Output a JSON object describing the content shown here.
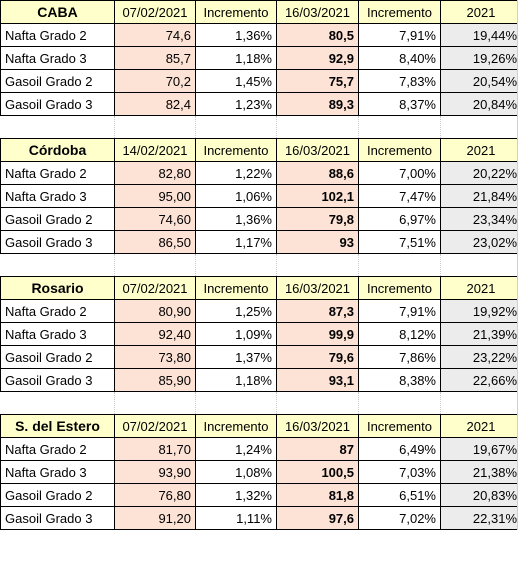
{
  "sections": [
    {
      "city": "CABA",
      "headers": [
        "07/02/2021",
        "Incremento",
        "16/03/2021",
        "Incremento",
        "2021"
      ],
      "rows": [
        {
          "product": "Nafta Grado 2",
          "price1": "74,6",
          "inc1": "1,36%",
          "price2": "80,5",
          "inc2": "7,91%",
          "ytd": "19,44%"
        },
        {
          "product": "Nafta Grado 3",
          "price1": "85,7",
          "inc1": "1,18%",
          "price2": "92,9",
          "inc2": "8,40%",
          "ytd": "19,26%"
        },
        {
          "product": "Gasoil Grado 2",
          "price1": "70,2",
          "inc1": "1,45%",
          "price2": "75,7",
          "inc2": "7,83%",
          "ytd": "20,54%"
        },
        {
          "product": "Gasoil Grado 3",
          "price1": "82,4",
          "inc1": "1,23%",
          "price2": "89,3",
          "inc2": "8,37%",
          "ytd": "20,84%"
        }
      ]
    },
    {
      "city": "Córdoba",
      "headers": [
        "14/02/2021",
        "Incremento",
        "16/03/2021",
        "Incremento",
        "2021"
      ],
      "rows": [
        {
          "product": "Nafta Grado 2",
          "price1": "82,80",
          "inc1": "1,22%",
          "price2": "88,6",
          "inc2": "7,00%",
          "ytd": "20,22%"
        },
        {
          "product": "Nafta Grado 3",
          "price1": "95,00",
          "inc1": "1,06%",
          "price2": "102,1",
          "inc2": "7,47%",
          "ytd": "21,84%"
        },
        {
          "product": "Gasoil Grado 2",
          "price1": "74,60",
          "inc1": "1,36%",
          "price2": "79,8",
          "inc2": "6,97%",
          "ytd": "23,34%"
        },
        {
          "product": "Gasoil Grado 3",
          "price1": "86,50",
          "inc1": "1,17%",
          "price2": "93",
          "inc2": "7,51%",
          "ytd": "23,02%"
        }
      ]
    },
    {
      "city": "Rosario",
      "headers": [
        "07/02/2021",
        "Incremento",
        "16/03/2021",
        "Incremento",
        "2021"
      ],
      "rows": [
        {
          "product": "Nafta Grado 2",
          "price1": "80,90",
          "inc1": "1,25%",
          "price2": "87,3",
          "inc2": "7,91%",
          "ytd": "19,92%"
        },
        {
          "product": "Nafta Grado 3",
          "price1": "92,40",
          "inc1": "1,09%",
          "price2": "99,9",
          "inc2": "8,12%",
          "ytd": "21,39%"
        },
        {
          "product": "Gasoil Grado 2",
          "price1": "73,80",
          "inc1": "1,37%",
          "price2": "79,6",
          "inc2": "7,86%",
          "ytd": "23,22%"
        },
        {
          "product": "Gasoil Grado 3",
          "price1": "85,90",
          "inc1": "1,18%",
          "price2": "93,1",
          "inc2": "8,38%",
          "ytd": "22,66%"
        }
      ]
    },
    {
      "city": "S. del Estero",
      "headers": [
        "07/02/2021",
        "Incremento",
        "16/03/2021",
        "Incremento",
        "2021"
      ],
      "rows": [
        {
          "product": "Nafta Grado 2",
          "price1": "81,70",
          "inc1": "1,24%",
          "price2": "87",
          "inc2": "6,49%",
          "ytd": "19,67%"
        },
        {
          "product": "Nafta Grado 3",
          "price1": "93,90",
          "inc1": "1,08%",
          "price2": "100,5",
          "inc2": "7,03%",
          "ytd": "21,38%"
        },
        {
          "product": "Gasoil Grado 2",
          "price1": "76,80",
          "inc1": "1,32%",
          "price2": "81,8",
          "inc2": "6,51%",
          "ytd": "20,83%"
        },
        {
          "product": "Gasoil Grado 3",
          "price1": "91,20",
          "inc1": "1,11%",
          "price2": "97,6",
          "inc2": "7,02%",
          "ytd": "22,31%"
        }
      ]
    }
  ],
  "colors": {
    "header_bg": "#ffffcc",
    "price_pink_bg": "#fde2d6",
    "ytd_gray_bg": "#ececec",
    "border": "#000000"
  }
}
